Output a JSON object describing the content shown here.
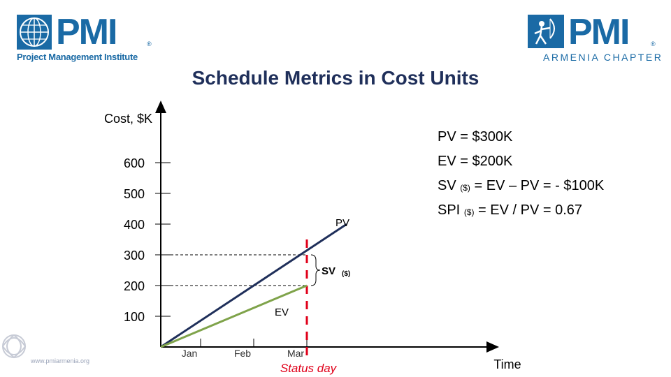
{
  "slide": {
    "title": "Schedule Metrics in Cost Units",
    "footer_url": "www.pmiarmenia.org"
  },
  "logos": {
    "left": {
      "wordmark": "PMI",
      "subtitle": "Project Management Institute",
      "registered": "®"
    },
    "right": {
      "wordmark": "PMI",
      "subtitle": "ARMENIA CHAPTER",
      "registered": "®"
    }
  },
  "metrics": {
    "pv": "PV = $300K",
    "ev": "EV = $200K",
    "sv": {
      "prefix": "SV",
      "sub": "($)",
      "suffix": "= EV – PV = - $100K"
    },
    "spi": {
      "prefix": "SPI",
      "sub": "($)",
      "suffix": "= EV / PV = 0.67"
    }
  },
  "chart_data": {
    "type": "line",
    "ylabel": "Cost, $K",
    "xlabel": "Time",
    "y_ticks": [
      100,
      200,
      300,
      400,
      500,
      600
    ],
    "x_ticks": [
      "Jan",
      "Feb",
      "Mar"
    ],
    "ylim": [
      0,
      750
    ],
    "xlim": [
      0,
      5.5
    ],
    "series": [
      {
        "name": "PV",
        "color": "#1f2f5a",
        "points": [
          [
            0,
            0
          ],
          [
            3.5,
            400
          ]
        ]
      },
      {
        "name": "EV",
        "color": "#7fa34a",
        "points": [
          [
            0,
            0
          ],
          [
            2.75,
            200
          ]
        ]
      }
    ],
    "reference_lines": [
      {
        "label": "PV",
        "y": 300
      },
      {
        "label": "EV",
        "y": 200
      }
    ],
    "status_day": {
      "label": "Status day",
      "x": 2.75,
      "color": "#e0001a"
    },
    "brace": {
      "label": "SV",
      "sub": "($)",
      "from": 200,
      "to": 300
    }
  },
  "colors": {
    "navy": "#1f2f5a",
    "brand_blue": "#1a6aa5",
    "green": "#7fa34a",
    "red": "#e0001a"
  }
}
